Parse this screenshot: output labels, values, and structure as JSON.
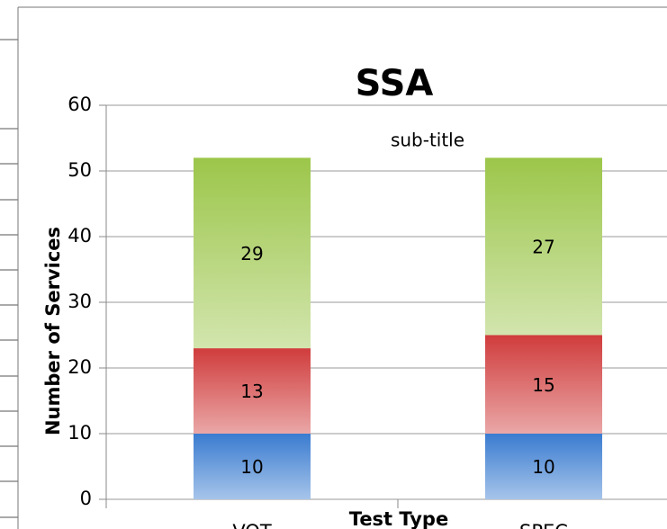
{
  "chart_data": {
    "type": "stacked_bar",
    "title": "SSA",
    "subtitle": "sub-title",
    "x_label": "Test Type",
    "y_label": "Number of Services",
    "categories": [
      "VOT",
      "SPEC"
    ],
    "series": [
      {
        "color": "#3a7bd0",
        "values": [
          10,
          10
        ]
      },
      {
        "color": "#d03c3c",
        "values": [
          13,
          15
        ]
      },
      {
        "color": "#9cc64a",
        "values": [
          29,
          27
        ]
      }
    ],
    "ylim": [
      0,
      60
    ],
    "yticks": [
      0,
      10,
      20,
      30,
      40,
      50,
      60
    ],
    "grid": true
  }
}
